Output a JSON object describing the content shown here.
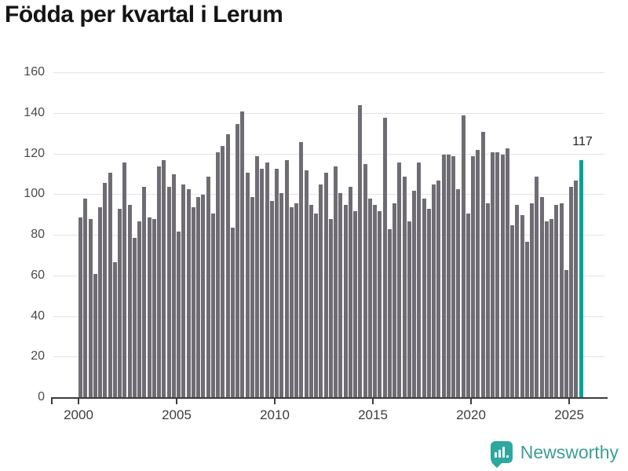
{
  "title": "Födda per kvartal i Lerum",
  "annotation": {
    "last_bar_label": "117"
  },
  "y_axis": {
    "tick_labels": [
      "0",
      "20",
      "40",
      "60",
      "80",
      "100",
      "120",
      "140",
      "160"
    ]
  },
  "x_axis": {
    "tick_labels": [
      "2000",
      "2005",
      "2010",
      "2015",
      "2020",
      "2025"
    ]
  },
  "logo": {
    "label": "Newsworthy",
    "icon": "bar-chart-speech-bubble-icon"
  },
  "colors": {
    "bar": "#6f6c74",
    "highlight": "#00a39a",
    "gridline": "#e4e4e4",
    "axis": "#3c3c3c",
    "logo_teal": "#2ea89e",
    "logo_text": "#3f9d96"
  },
  "chart_data": {
    "type": "bar",
    "title": "Födda per kvartal i Lerum",
    "frequency": "quarterly",
    "period_start": "2000-Q1",
    "period_end": "2025-Q3",
    "xlabel": "",
    "ylabel": "",
    "ylim": [
      0,
      160
    ],
    "y_ticks": [
      0,
      20,
      40,
      60,
      80,
      100,
      120,
      140,
      160
    ],
    "x_tick_years": [
      2000,
      2005,
      2010,
      2015,
      2020,
      2025
    ],
    "grid": true,
    "legend": false,
    "values": [
      89,
      98,
      88,
      61,
      94,
      106,
      111,
      67,
      93,
      116,
      95,
      79,
      87,
      104,
      89,
      88,
      114,
      117,
      104,
      110,
      82,
      105,
      103,
      94,
      99,
      100,
      109,
      91,
      121,
      124,
      130,
      84,
      135,
      141,
      111,
      99,
      119,
      113,
      116,
      97,
      113,
      101,
      117,
      94,
      96,
      126,
      112,
      95,
      91,
      105,
      111,
      88,
      114,
      101,
      95,
      104,
      92,
      144,
      115,
      98,
      95,
      92,
      138,
      83,
      96,
      116,
      109,
      87,
      102,
      116,
      98,
      93,
      105,
      107,
      120,
      120,
      119,
      103,
      139,
      91,
      119,
      122,
      131,
      96,
      121,
      121,
      120,
      123,
      85,
      95,
      90,
      77,
      96,
      109,
      99,
      87,
      88,
      95,
      96,
      63,
      104,
      107,
      117
    ],
    "highlight_last_bar": true,
    "highlight_value_label": "117"
  }
}
